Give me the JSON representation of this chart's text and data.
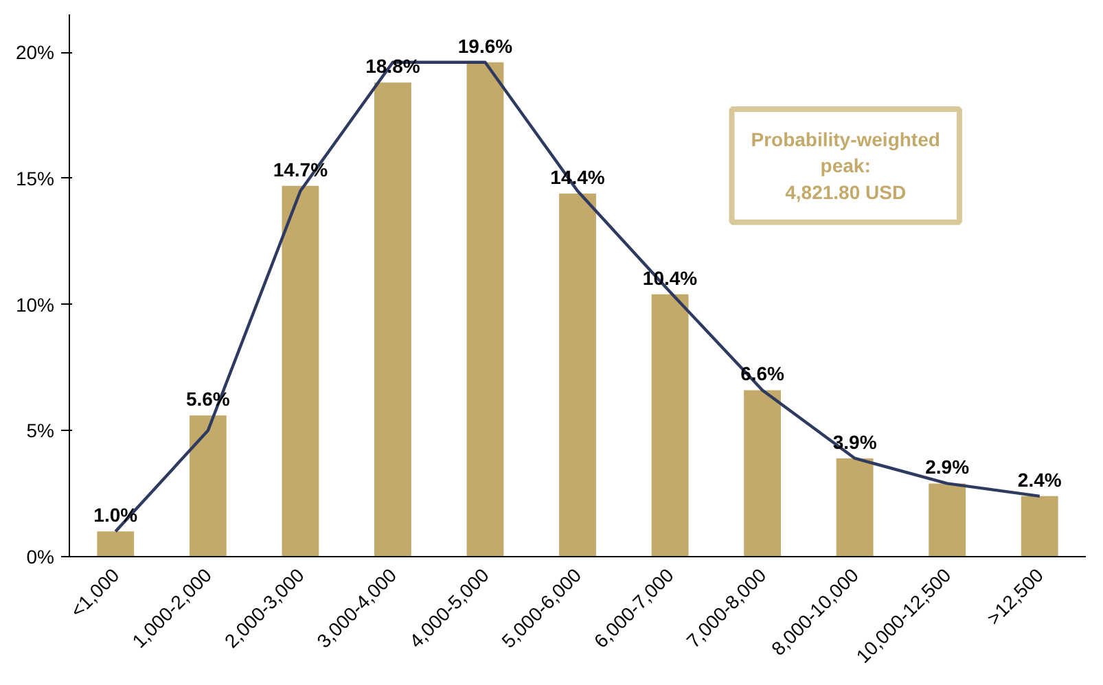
{
  "chart_data": {
    "type": "bar",
    "categories": [
      "<1,000",
      "1,000-2,000",
      "2,000-3,000",
      "3,000-4,000",
      "4,000-5,000",
      "5,000-6,000",
      "6,000-7,000",
      "7,000-8,000",
      "8,000-10,000",
      "10,000-12,500",
      ">12,500"
    ],
    "series": [
      {
        "color": "#c4aa6a",
        "values": [
          1.0,
          5.6,
          14.7,
          18.8,
          19.6,
          14.4,
          10.4,
          6.6,
          3.9,
          2.9,
          2.4
        ],
        "value_labels": [
          "1.0%",
          "5.6%",
          "14.7%",
          "18.8%",
          "19.6%",
          "14.4%",
          "10.4%",
          "6.6%",
          "3.9%",
          "2.9%",
          "2.4%"
        ]
      },
      {
        "type": "line",
        "color": "#2e3a5f",
        "values": [
          1.0,
          5.0,
          14.5,
          19.6,
          19.6,
          14.5,
          10.5,
          6.6,
          3.9,
          2.9,
          2.4
        ]
      }
    ],
    "ylim": [
      0,
      21.5
    ],
    "yticks": [
      {
        "value": 0,
        "label": "0%"
      },
      {
        "value": 5,
        "label": "5%"
      },
      {
        "value": 10,
        "label": "10%"
      },
      {
        "value": 15,
        "label": "15%"
      },
      {
        "value": 20,
        "label": "20%"
      }
    ],
    "annotations": [
      "Probability-weighted\npeak:\n4,821.80 USD"
    ],
    "grid": false,
    "marker": "none"
  }
}
